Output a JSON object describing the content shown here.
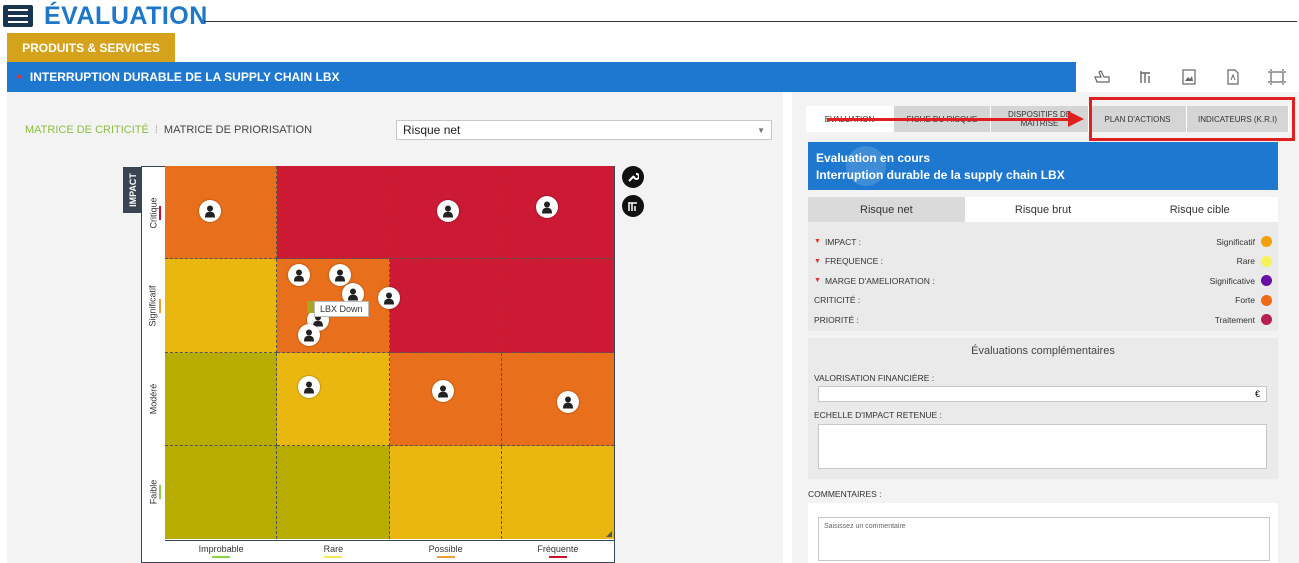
{
  "header": {
    "title": "ÉVALUATION",
    "category_tab": "PRODUITS & SERVICES",
    "section_title": "INTERRUPTION DURABLE DE LA SUPPLY CHAIN LBX"
  },
  "toolbar": {
    "icons": [
      "pointer-hand-icon",
      "columns-icon",
      "image-icon",
      "pdf-icon",
      "resize-icon"
    ]
  },
  "matrix": {
    "tab_criticite": "MATRICE DE CRITICITÉ",
    "tab_priorisation": "MATRICE DE PRIORISATION",
    "select_value": "Risque net",
    "impact_label": "IMPACT",
    "y_levels": [
      "Critique",
      "Significatif",
      "Modéré",
      "Faible"
    ],
    "y_marks": [
      "#c8102e",
      "#f0a030",
      "#ffffff",
      "#8cd43f"
    ],
    "x_levels": [
      "Improbable",
      "Rare",
      "Possible",
      "Fréquente"
    ],
    "x_marks": [
      "#8cd43f",
      "#f3ea59",
      "#f0a030",
      "#c8102e"
    ],
    "cell_colors": [
      [
        "#e8701c",
        "#cc1a35",
        "#cc1a35",
        "#cc1a35"
      ],
      [
        "#e9b710",
        "#e8701c",
        "#cc1a35",
        "#cc1a35"
      ],
      [
        "#b6ac02",
        "#e9b710",
        "#e8701c",
        "#e8701c"
      ],
      [
        "#b6ac02",
        "#b6ac02",
        "#e9b710",
        "#e9b710"
      ]
    ],
    "tooltip": "LBX Down"
  },
  "tabs": [
    {
      "label": "EVALUATION",
      "active": true
    },
    {
      "label": "FICHE DU RISQUE",
      "active": false
    },
    {
      "label": "DISPOSITIFS DE MAITRISE",
      "active": false
    },
    {
      "label": "PLAN D'ACTIONS",
      "active": false
    },
    {
      "label": "INDICATEURS (K.R.I)",
      "active": false
    }
  ],
  "evaluation": {
    "status": "Evaluation en cours",
    "subtitle": "Interruption durable de la supply chain LBX",
    "subtabs": [
      "Risque net",
      "Risque brut",
      "Risque cible"
    ],
    "properties": [
      {
        "label": "IMPACT :",
        "value": "Significatif",
        "color": "#f5a00a",
        "required": true
      },
      {
        "label": "FREQUENCE :",
        "value": "Rare",
        "color": "#f7f25a",
        "required": true
      },
      {
        "label": "MARGE D'AMELIORATION :",
        "value": "Significative",
        "color": "#6a0ea8",
        "required": true
      },
      {
        "label": "CRITICITÉ :",
        "value": "Forte",
        "color": "#f06a15",
        "required": false
      },
      {
        "label": "PRIORITÉ :",
        "value": "Traitement",
        "color": "#b51f55",
        "required": false
      }
    ]
  },
  "complementary": {
    "title": "Évaluations complémentaires",
    "valorisation_label": "VALORISATION FINANCIÈRE :",
    "currency": "€",
    "echelle_label": "ECHELLE D'IMPACT RETENUE :"
  },
  "comments": {
    "label": "COMMENTAIRES :",
    "placeholder": "Saisissez un commentaire"
  }
}
